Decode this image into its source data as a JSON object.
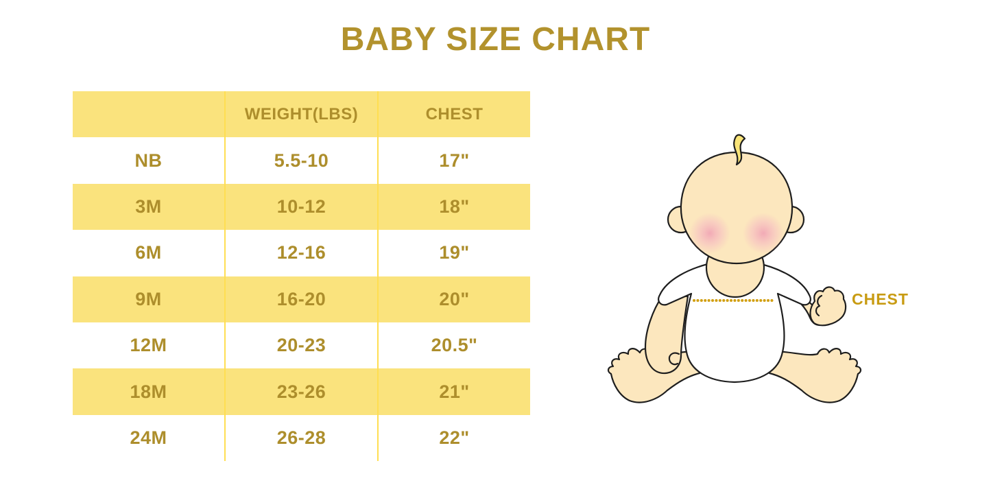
{
  "title": "BABY SIZE CHART",
  "table": {
    "headers": [
      "",
      "WEIGHT(LBS)",
      "CHEST"
    ],
    "rows": [
      {
        "size": "NB",
        "weight_lbs": "5.5-10",
        "chest": "17\""
      },
      {
        "size": "3M",
        "weight_lbs": "10-12",
        "chest": "18\""
      },
      {
        "size": "6M",
        "weight_lbs": "12-16",
        "chest": "19\""
      },
      {
        "size": "9M",
        "weight_lbs": "16-20",
        "chest": "20\""
      },
      {
        "size": "12M",
        "weight_lbs": "20-23",
        "chest": "20.5\""
      },
      {
        "size": "18M",
        "weight_lbs": "23-26",
        "chest": "21\""
      },
      {
        "size": "24M",
        "weight_lbs": "26-28",
        "chest": "22\""
      }
    ]
  },
  "figure": {
    "chest_label": "CHEST"
  },
  "colors": {
    "title_gold": "#B2922D",
    "table_text_gold": "#AD8E2C",
    "row_yellow": "#FAE37D",
    "divider_yellow": "#FFDE52",
    "chest_label_gold": "#C89B12",
    "dotted_line_gold": "#D2A013",
    "baby_skin": "#FCE7BE",
    "shirt_white": "#FFFFFF",
    "hair_yellow": "#F9E478",
    "cheek_pink": "#F2A8BC",
    "outline_black": "#1E1E1E"
  },
  "chart_data": {
    "type": "table",
    "title": "BABY SIZE CHART",
    "columns": [
      "",
      "WEIGHT(LBS)",
      "CHEST"
    ],
    "rows": [
      [
        "NB",
        "5.5-10",
        "17\""
      ],
      [
        "3M",
        "10-12",
        "18\""
      ],
      [
        "6M",
        "12-16",
        "19\""
      ],
      [
        "9M",
        "16-20",
        "20\""
      ],
      [
        "12M",
        "20-23",
        "20.5\""
      ],
      [
        "18M",
        "23-26",
        "21\""
      ],
      [
        "24M",
        "26-28",
        "22\""
      ]
    ]
  }
}
